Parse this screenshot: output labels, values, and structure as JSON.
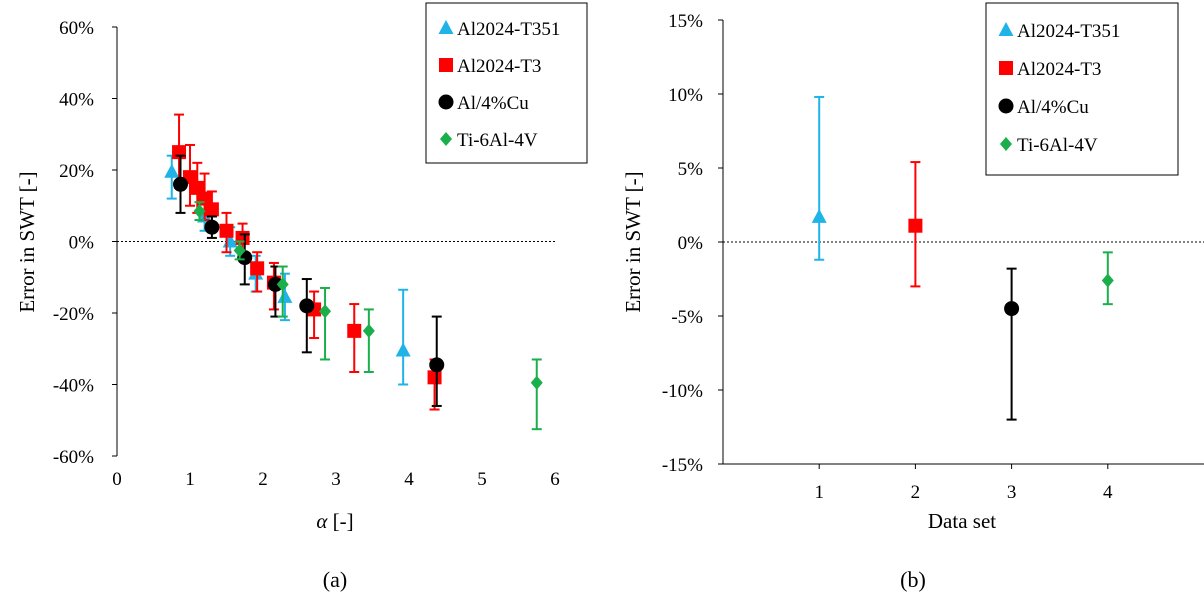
{
  "colors": {
    "Al2024-T351": "#1fb3e8",
    "Al2024-T3": "#ff0000",
    "Al/4%Cu": "#000000",
    "Ti-6Al-4V": "#1aaf4b"
  },
  "chart_data": [
    {
      "type": "scatter",
      "panel_label": "(a)",
      "xlabel_symbol": "α",
      "xlabel_unit": " [-]",
      "ylabel": "Error in SWT [-]",
      "xlim": [
        0,
        6
      ],
      "ylim": [
        -60,
        60
      ],
      "x_ticks": [
        "0",
        "1",
        "2",
        "3",
        "4",
        "5",
        "6"
      ],
      "y_ticks": [
        "60%",
        "40%",
        "20%",
        "0%",
        "-20%",
        "-40%",
        "-60%"
      ],
      "reference_line_y": 0,
      "legend_position": "top-right",
      "series": [
        {
          "name": "Al2024-T351",
          "marker": "triangle",
          "points": [
            {
              "x": 0.75,
              "y": 19.5,
              "lo": 12,
              "hi": 24
            },
            {
              "x": 1.2,
              "y": 7,
              "lo": 3,
              "hi": 12
            },
            {
              "x": 1.55,
              "y": 0,
              "lo": -4,
              "hi": 4
            },
            {
              "x": 1.9,
              "y": -9,
              "lo": -14,
              "hi": -4
            },
            {
              "x": 2.3,
              "y": -15.5,
              "lo": -22,
              "hi": -9
            },
            {
              "x": 3.92,
              "y": -30.5,
              "lo": -40,
              "hi": -13.5
            }
          ]
        },
        {
          "name": "Al2024-T3",
          "marker": "square",
          "points": [
            {
              "x": 0.85,
              "y": 25,
              "lo": 15,
              "hi": 35.5
            },
            {
              "x": 1.0,
              "y": 18,
              "lo": 10,
              "hi": 27
            },
            {
              "x": 1.1,
              "y": 15,
              "lo": 8,
              "hi": 22
            },
            {
              "x": 1.2,
              "y": 12,
              "lo": 6,
              "hi": 19
            },
            {
              "x": 1.3,
              "y": 9,
              "lo": 4,
              "hi": 14
            },
            {
              "x": 1.5,
              "y": 3,
              "lo": -3,
              "hi": 8
            },
            {
              "x": 1.72,
              "y": 1,
              "lo": -3,
              "hi": 5
            },
            {
              "x": 1.92,
              "y": -7.5,
              "lo": -14,
              "hi": -3
            },
            {
              "x": 2.15,
              "y": -11.5,
              "lo": -19,
              "hi": -6
            },
            {
              "x": 2.7,
              "y": -19,
              "lo": -27,
              "hi": -14
            },
            {
              "x": 3.25,
              "y": -25,
              "lo": -36.5,
              "hi": -17.5
            },
            {
              "x": 4.35,
              "y": -38,
              "lo": -47,
              "hi": -33
            }
          ]
        },
        {
          "name": "Al/4%Cu",
          "marker": "circle",
          "points": [
            {
              "x": 0.87,
              "y": 16,
              "lo": 8,
              "hi": 24
            },
            {
              "x": 1.3,
              "y": 4,
              "lo": 1,
              "hi": 7
            },
            {
              "x": 1.75,
              "y": -4.5,
              "lo": -12,
              "hi": 2
            },
            {
              "x": 2.17,
              "y": -12,
              "lo": -21,
              "hi": -7
            },
            {
              "x": 2.6,
              "y": -18,
              "lo": -31,
              "hi": -10.5
            },
            {
              "x": 4.38,
              "y": -34.5,
              "lo": -46,
              "hi": -21
            }
          ]
        },
        {
          "name": "Ti-6Al-4V",
          "marker": "diamond",
          "points": [
            {
              "x": 1.13,
              "y": 8.5,
              "lo": 6,
              "hi": 11
            },
            {
              "x": 1.68,
              "y": -2.5,
              "lo": -5,
              "hi": 0
            },
            {
              "x": 2.27,
              "y": -12,
              "lo": -21,
              "hi": -7
            },
            {
              "x": 2.85,
              "y": -19.5,
              "lo": -33,
              "hi": -13
            },
            {
              "x": 3.45,
              "y": -25,
              "lo": -36.5,
              "hi": -19
            },
            {
              "x": 5.75,
              "y": -39.5,
              "lo": -52.5,
              "hi": -33
            }
          ]
        }
      ]
    },
    {
      "type": "scatter",
      "panel_label": "(b)",
      "xlabel": "Data set",
      "ylabel": "Error in SWT [-]",
      "xlim": [
        0,
        5
      ],
      "ylim": [
        -15,
        15
      ],
      "x_ticks": [
        "1",
        "2",
        "3",
        "4"
      ],
      "y_ticks": [
        "15%",
        "10%",
        "5%",
        "0%",
        "-5%",
        "-10%",
        "-15%"
      ],
      "reference_line_y": 0,
      "legend_position": "top-right",
      "series": [
        {
          "name": "Al2024-T351",
          "marker": "triangle",
          "points": [
            {
              "x": 1,
              "y": 1.7,
              "lo": -1.2,
              "hi": 9.8
            }
          ]
        },
        {
          "name": "Al2024-T3",
          "marker": "square",
          "points": [
            {
              "x": 2,
              "y": 1.1,
              "lo": -3,
              "hi": 5.4
            }
          ]
        },
        {
          "name": "Al/4%Cu",
          "marker": "circle",
          "points": [
            {
              "x": 3,
              "y": -4.5,
              "lo": -12,
              "hi": -1.8
            }
          ]
        },
        {
          "name": "Ti-6Al-4V",
          "marker": "diamond",
          "points": [
            {
              "x": 4,
              "y": -2.6,
              "lo": -4.2,
              "hi": -0.7
            }
          ]
        }
      ]
    }
  ]
}
